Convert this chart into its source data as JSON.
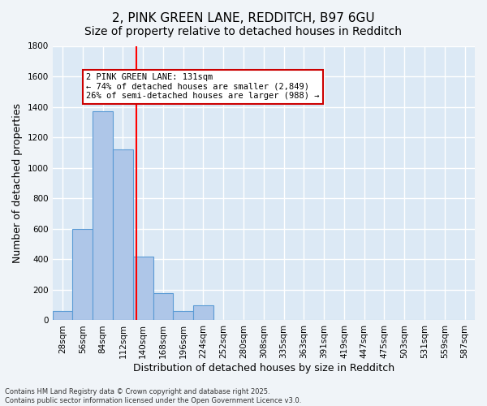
{
  "title1": "2, PINK GREEN LANE, REDDITCH, B97 6GU",
  "title2": "Size of property relative to detached houses in Redditch",
  "xlabel": "Distribution of detached houses by size in Redditch",
  "ylabel": "Number of detached properties",
  "bin_labels": [
    "28sqm",
    "56sqm",
    "84sqm",
    "112sqm",
    "140sqm",
    "168sqm",
    "196sqm",
    "224sqm",
    "252sqm",
    "280sqm",
    "308sqm",
    "335sqm",
    "363sqm",
    "391sqm",
    "419sqm",
    "447sqm",
    "475sqm",
    "503sqm",
    "531sqm",
    "559sqm",
    "587sqm"
  ],
  "bar_values": [
    60,
    600,
    1370,
    1120,
    420,
    180,
    60,
    100,
    0,
    0,
    0,
    0,
    0,
    0,
    0,
    0,
    0,
    0,
    0,
    0,
    0
  ],
  "bar_color": "#aec6e8",
  "bar_edge_color": "#5b9bd5",
  "bg_color": "#dce9f5",
  "grid_color": "#ffffff",
  "annotation_text": "2 PINK GREEN LANE: 131sqm\n← 74% of detached houses are smaller (2,849)\n26% of semi-detached houses are larger (988) →",
  "annotation_box_color": "#ffffff",
  "annotation_box_edge": "#cc0000",
  "ylim": [
    0,
    1800
  ],
  "yticks": [
    0,
    200,
    400,
    600,
    800,
    1000,
    1200,
    1400,
    1600,
    1800
  ],
  "footnote": "Contains HM Land Registry data © Crown copyright and database right 2025.\nContains public sector information licensed under the Open Government Licence v3.0.",
  "title_fontsize": 11,
  "subtitle_fontsize": 10,
  "axis_fontsize": 9,
  "tick_fontsize": 7.5,
  "fig_bg_color": "#f0f4f8"
}
